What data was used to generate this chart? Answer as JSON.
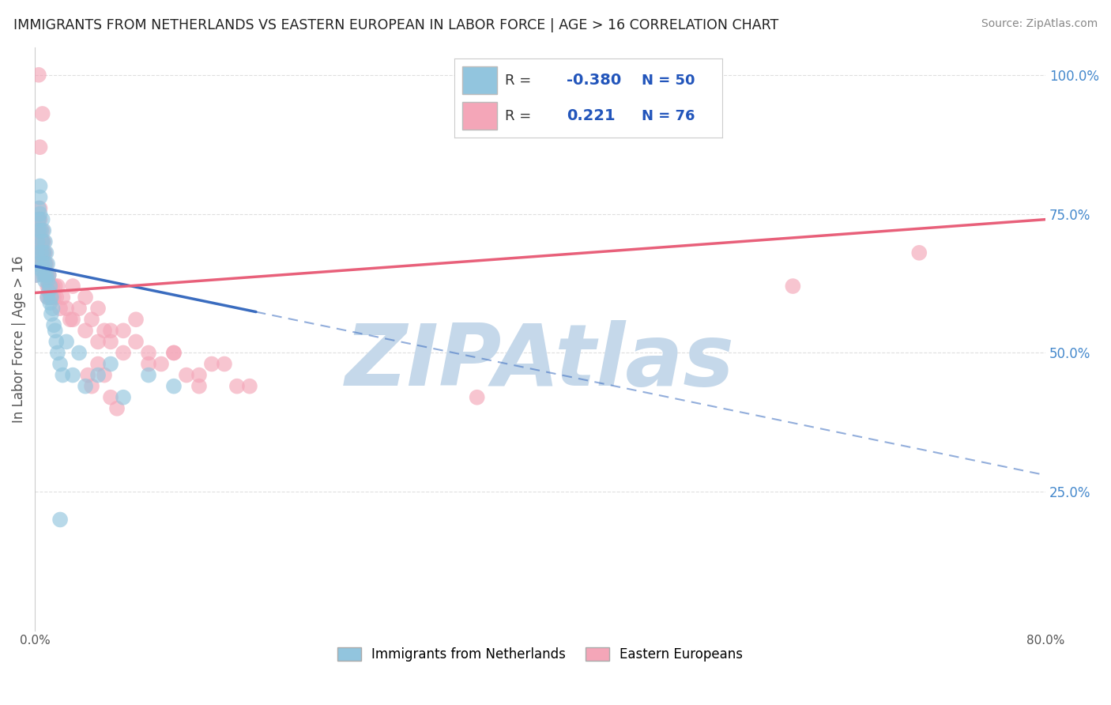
{
  "title": "IMMIGRANTS FROM NETHERLANDS VS EASTERN EUROPEAN IN LABOR FORCE | AGE > 16 CORRELATION CHART",
  "source": "Source: ZipAtlas.com",
  "ylabel": "In Labor Force | Age > 16",
  "legend_labels": [
    "Immigrants from Netherlands",
    "Eastern Europeans"
  ],
  "blue_color": "#92c5de",
  "pink_color": "#f4a6b8",
  "blue_line_color": "#3a6cbf",
  "pink_line_color": "#e8607a",
  "blue_scatter": {
    "x": [
      0.001,
      0.001,
      0.002,
      0.002,
      0.003,
      0.003,
      0.003,
      0.004,
      0.004,
      0.004,
      0.005,
      0.005,
      0.005,
      0.006,
      0.006,
      0.006,
      0.007,
      0.007,
      0.007,
      0.008,
      0.008,
      0.008,
      0.009,
      0.009,
      0.01,
      0.01,
      0.01,
      0.011,
      0.011,
      0.012,
      0.012,
      0.013,
      0.013,
      0.014,
      0.015,
      0.016,
      0.017,
      0.018,
      0.02,
      0.022,
      0.025,
      0.03,
      0.035,
      0.04,
      0.05,
      0.06,
      0.07,
      0.09,
      0.11,
      0.02
    ],
    "y": [
      0.66,
      0.64,
      0.7,
      0.68,
      0.76,
      0.74,
      0.72,
      0.8,
      0.78,
      0.75,
      0.68,
      0.72,
      0.65,
      0.74,
      0.7,
      0.66,
      0.72,
      0.68,
      0.64,
      0.7,
      0.66,
      0.63,
      0.68,
      0.64,
      0.66,
      0.63,
      0.6,
      0.64,
      0.61,
      0.62,
      0.59,
      0.6,
      0.57,
      0.58,
      0.55,
      0.54,
      0.52,
      0.5,
      0.48,
      0.46,
      0.52,
      0.46,
      0.5,
      0.44,
      0.46,
      0.48,
      0.42,
      0.46,
      0.44,
      0.2
    ]
  },
  "pink_scatter": {
    "x": [
      0.001,
      0.001,
      0.002,
      0.002,
      0.002,
      0.003,
      0.003,
      0.003,
      0.004,
      0.004,
      0.004,
      0.005,
      0.005,
      0.005,
      0.006,
      0.006,
      0.006,
      0.007,
      0.007,
      0.007,
      0.008,
      0.008,
      0.008,
      0.009,
      0.009,
      0.01,
      0.01,
      0.01,
      0.011,
      0.011,
      0.012,
      0.012,
      0.013,
      0.013,
      0.014,
      0.015,
      0.016,
      0.017,
      0.018,
      0.02,
      0.022,
      0.025,
      0.028,
      0.03,
      0.035,
      0.04,
      0.045,
      0.05,
      0.06,
      0.07,
      0.08,
      0.09,
      0.11,
      0.13,
      0.15,
      0.17,
      0.03,
      0.04,
      0.05,
      0.055,
      0.06,
      0.07,
      0.08,
      0.09,
      0.1,
      0.11,
      0.12,
      0.13,
      0.14,
      0.16,
      0.042,
      0.045,
      0.05,
      0.055,
      0.06,
      0.065
    ],
    "y": [
      0.66,
      0.64,
      0.7,
      0.68,
      0.66,
      0.74,
      0.72,
      0.7,
      0.76,
      0.74,
      0.72,
      0.7,
      0.68,
      0.66,
      0.72,
      0.7,
      0.68,
      0.7,
      0.68,
      0.66,
      0.68,
      0.66,
      0.64,
      0.66,
      0.64,
      0.64,
      0.62,
      0.6,
      0.64,
      0.62,
      0.62,
      0.6,
      0.62,
      0.6,
      0.62,
      0.6,
      0.62,
      0.6,
      0.62,
      0.58,
      0.6,
      0.58,
      0.56,
      0.56,
      0.58,
      0.54,
      0.56,
      0.52,
      0.54,
      0.5,
      0.52,
      0.48,
      0.5,
      0.46,
      0.48,
      0.44,
      0.62,
      0.6,
      0.58,
      0.54,
      0.52,
      0.54,
      0.56,
      0.5,
      0.48,
      0.5,
      0.46,
      0.44,
      0.48,
      0.44,
      0.46,
      0.44,
      0.48,
      0.46,
      0.42,
      0.4
    ]
  },
  "pink_extra": {
    "x": [
      0.003,
      0.006,
      0.004,
      0.35,
      0.6,
      0.7
    ],
    "y": [
      1.0,
      0.93,
      0.87,
      0.42,
      0.62,
      0.68
    ]
  },
  "xlim": [
    0.0,
    0.8
  ],
  "ylim": [
    0.0,
    1.05
  ],
  "xticks": [
    0.0,
    0.1,
    0.2,
    0.3,
    0.4,
    0.5,
    0.6,
    0.7,
    0.8
  ],
  "xticklabels": [
    "0.0%",
    "",
    "",
    "",
    "",
    "",
    "",
    "",
    "80.0%"
  ],
  "yticks_right": [
    0.25,
    0.5,
    0.75,
    1.0
  ],
  "yticklabels_right": [
    "25.0%",
    "50.0%",
    "75.0%",
    "100.0%"
  ],
  "watermark": "ZIPAtlas",
  "watermark_color": "#c5d8ea",
  "blue_trend_x": [
    0.0,
    0.8
  ],
  "blue_trend_y": [
    0.656,
    0.28
  ],
  "blue_trend_solid_end_x": 0.175,
  "pink_trend_x": [
    0.0,
    0.8
  ],
  "pink_trend_y": [
    0.608,
    0.74
  ],
  "background_color": "#ffffff",
  "grid_color": "#d8d8d8"
}
